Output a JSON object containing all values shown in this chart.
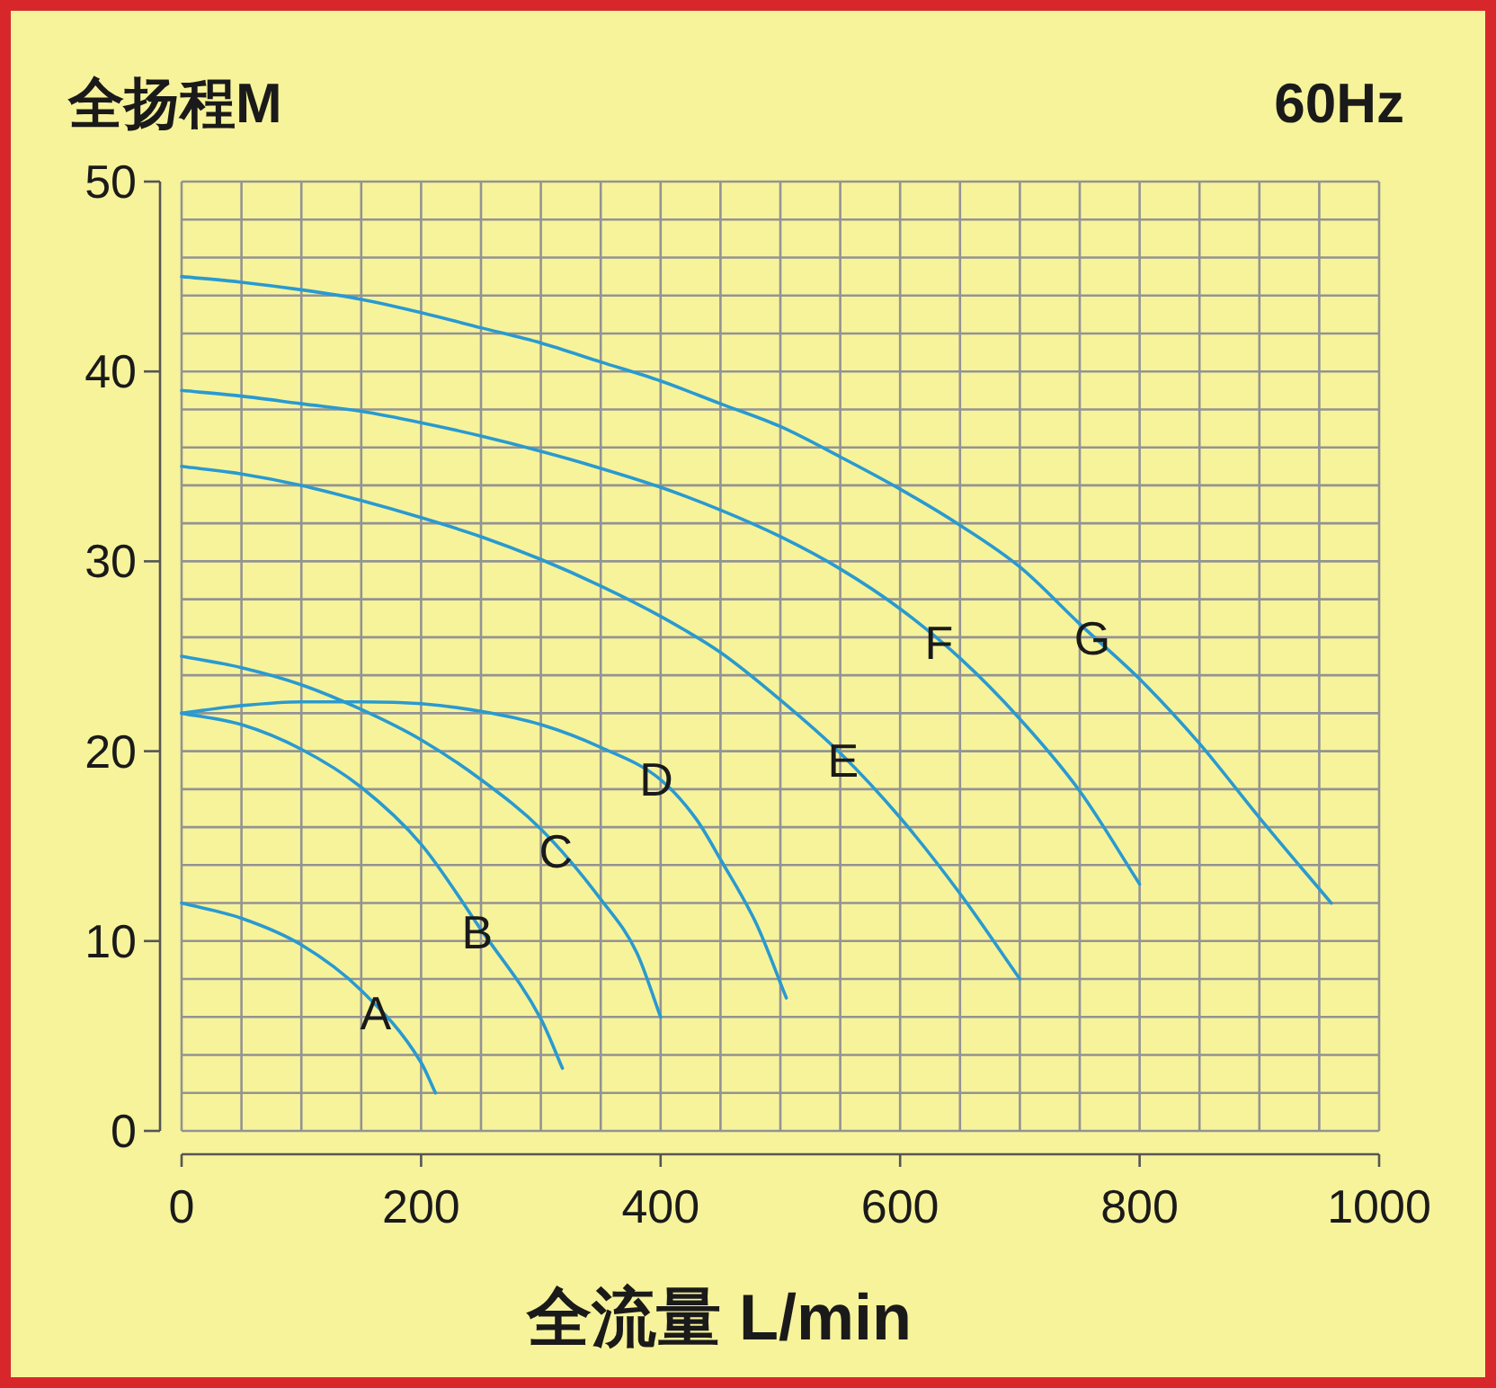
{
  "chart_data": {
    "type": "line",
    "ylabel": "全扬程M",
    "xlabel": "全流量 L/min",
    "annotations": [
      "60Hz"
    ],
    "xlim": [
      0,
      1000
    ],
    "ylim": [
      0,
      50
    ],
    "xticks": [
      0,
      200,
      400,
      600,
      800,
      1000
    ],
    "yticks": [
      0,
      10,
      20,
      30,
      40,
      50
    ],
    "grid": true,
    "line_style": "solid",
    "series": [
      {
        "name": "A",
        "color": "#2a9ad0",
        "x": [
          0,
          50,
          100,
          150,
          200,
          212
        ],
        "values": [
          12,
          11.2,
          9.8,
          7.4,
          3.6,
          2.0
        ]
      },
      {
        "name": "B",
        "color": "#2a9ad0",
        "x": [
          0,
          50,
          100,
          150,
          200,
          250,
          300,
          318
        ],
        "values": [
          22,
          21.4,
          20.1,
          18.1,
          15.1,
          10.6,
          5.9,
          3.3
        ]
      },
      {
        "name": "C",
        "color": "#2a9ad0",
        "x": [
          0,
          50,
          100,
          150,
          200,
          250,
          300,
          350,
          380,
          400
        ],
        "values": [
          25,
          24.4,
          23.5,
          22.2,
          20.6,
          18.5,
          15.9,
          12.2,
          9.4,
          6.0
        ]
      },
      {
        "name": "D",
        "color": "#2a9ad0",
        "x": [
          0,
          50,
          100,
          150,
          200,
          250,
          300,
          350,
          400,
          430,
          450,
          480,
          505
        ],
        "values": [
          22,
          22.4,
          22.6,
          22.6,
          22.5,
          22.1,
          21.4,
          20.2,
          18.5,
          16.4,
          14.3,
          10.9,
          7.0
        ]
      },
      {
        "name": "E",
        "color": "#2a9ad0",
        "x": [
          0,
          50,
          100,
          150,
          200,
          250,
          300,
          350,
          400,
          450,
          500,
          550,
          600,
          650,
          700
        ],
        "values": [
          35,
          34.6,
          34.0,
          33.2,
          32.3,
          31.3,
          30.1,
          28.7,
          27.1,
          25.2,
          22.7,
          19.9,
          16.5,
          12.5,
          8.0
        ]
      },
      {
        "name": "F",
        "color": "#2a9ad0",
        "x": [
          0,
          50,
          100,
          150,
          200,
          250,
          300,
          350,
          400,
          450,
          500,
          550,
          600,
          650,
          700,
          750,
          800
        ],
        "values": [
          39,
          38.7,
          38.3,
          37.9,
          37.3,
          36.6,
          35.8,
          34.9,
          33.9,
          32.7,
          31.3,
          29.6,
          27.5,
          24.9,
          21.7,
          17.9,
          13.0
        ]
      },
      {
        "name": "G",
        "color": "#2a9ad0",
        "x": [
          0,
          50,
          100,
          150,
          200,
          250,
          300,
          350,
          400,
          450,
          500,
          550,
          600,
          650,
          700,
          750,
          800,
          850,
          900,
          960
        ],
        "values": [
          45,
          44.7,
          44.3,
          43.8,
          43.1,
          42.3,
          41.5,
          40.5,
          39.5,
          38.3,
          37.1,
          35.5,
          33.8,
          31.9,
          29.7,
          26.7,
          23.8,
          20.4,
          16.5,
          12.0
        ]
      }
    ]
  }
}
